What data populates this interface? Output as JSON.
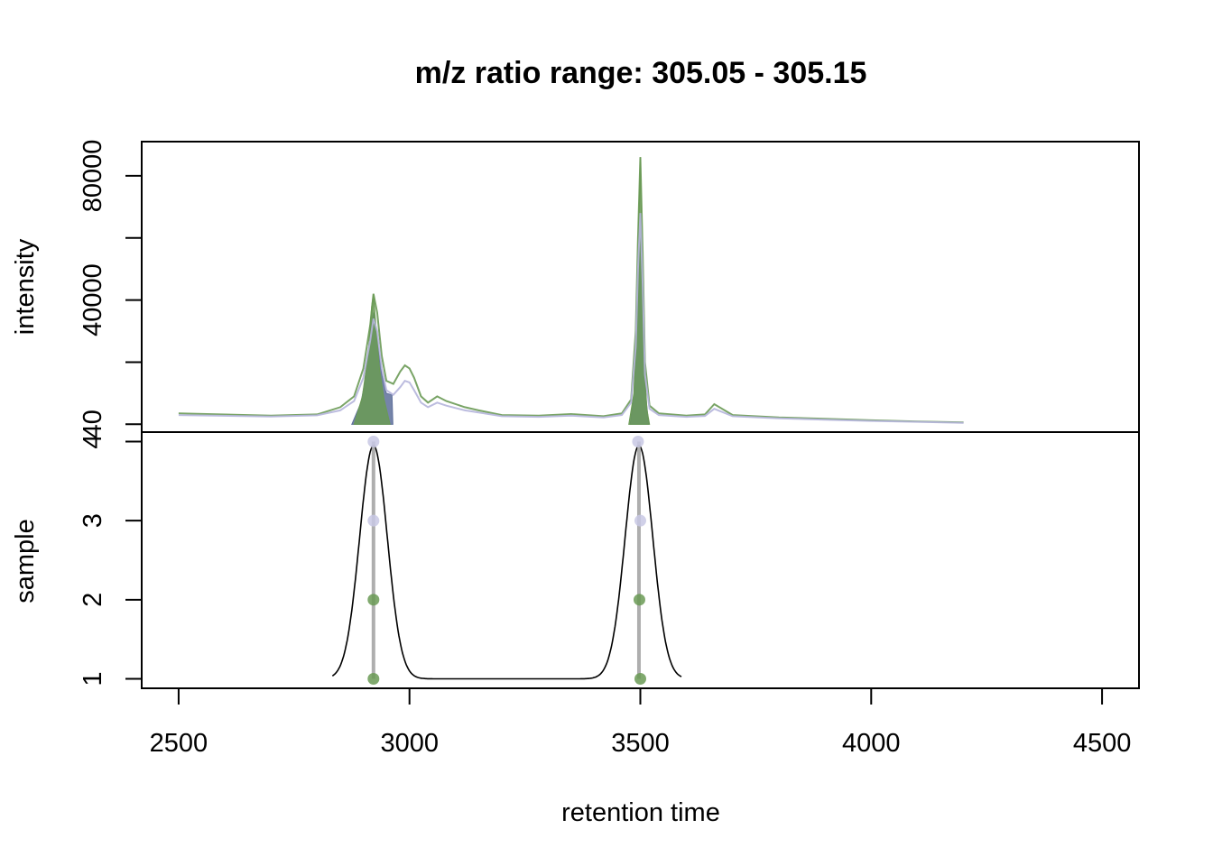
{
  "chart_data": {
    "title": "m/z ratio range: 305.05 - 305.15",
    "xlabel": "retention time",
    "xlim": [
      2420,
      4580
    ],
    "x_ticks": [
      "2500",
      "3000",
      "3500",
      "4000",
      "4500"
    ],
    "top_panel": {
      "type": "line",
      "ylabel": "intensity",
      "ylim": [
        -2500,
        91000
      ],
      "y_ticks": [
        "40",
        "40000",
        "80000"
      ],
      "y_tick_values": [
        40,
        40000,
        80000
      ],
      "y_minor_ticks": [
        20000,
        60000
      ],
      "series": [
        {
          "color": "#6a9a55",
          "x": [
            2500,
            2700,
            2800,
            2850,
            2880,
            2900,
            2915,
            2922,
            2930,
            2940,
            2950,
            2965,
            2980,
            2990,
            3000,
            3010,
            3025,
            3040,
            3060,
            3080,
            3120,
            3150,
            3200,
            3280,
            3350,
            3420,
            3460,
            3480,
            3490,
            3495,
            3500,
            3505,
            3510,
            3520,
            3540,
            3600,
            3640,
            3660,
            3700,
            3800,
            3900,
            4000,
            4100,
            4200
          ],
          "y": [
            3500,
            2800,
            3200,
            5500,
            9000,
            18000,
            32000,
            42000,
            36000,
            22000,
            14000,
            13000,
            17000,
            19000,
            18000,
            15000,
            9000,
            7000,
            9000,
            7500,
            5500,
            4500,
            3000,
            2800,
            3300,
            2600,
            3500,
            8000,
            30000,
            60000,
            86000,
            55000,
            20000,
            6000,
            3500,
            2800,
            3200,
            6500,
            3000,
            2200,
            1800,
            1300,
            900,
            600
          ]
        },
        {
          "color": "#b5b5dc",
          "x": [
            2500,
            2700,
            2800,
            2850,
            2880,
            2900,
            2915,
            2922,
            2930,
            2940,
            2950,
            2965,
            2980,
            2990,
            3000,
            3010,
            3025,
            3040,
            3060,
            3080,
            3120,
            3150,
            3200,
            3280,
            3350,
            3420,
            3460,
            3480,
            3490,
            3495,
            3500,
            3505,
            3510,
            3520,
            3540,
            3600,
            3640,
            3660,
            3700,
            3800,
            3900,
            4000,
            4100,
            4200
          ],
          "y": [
            3000,
            2500,
            2900,
            4500,
            7500,
            15000,
            27000,
            34000,
            30000,
            18000,
            11000,
            9500,
            12000,
            14000,
            13500,
            11000,
            7000,
            5500,
            7000,
            6000,
            4500,
            3800,
            2600,
            2400,
            2800,
            2200,
            3000,
            7000,
            25000,
            50000,
            68000,
            45000,
            16000,
            5000,
            3000,
            2400,
            2700,
            5000,
            2600,
            1900,
            1500,
            1100,
            800,
            500
          ]
        }
      ],
      "filled_peaks": [
        {
          "color": "#5d6e9a",
          "x": [
            2875,
            2895,
            2905,
            2915,
            2922,
            2930,
            2940,
            2950,
            2962,
            2964
          ],
          "y": [
            0,
            7000,
            15000,
            30000,
            36000,
            28000,
            16000,
            10000,
            9500,
            0
          ]
        },
        {
          "color": "#6a9a55",
          "x": [
            2880,
            2898,
            2910,
            2918,
            2922,
            2926,
            2935,
            2945,
            2958
          ],
          "y": [
            0,
            9000,
            22000,
            38000,
            42000,
            34000,
            18000,
            8000,
            0
          ]
        },
        {
          "color": "#5d6e9a",
          "x": [
            3478,
            3488,
            3494,
            3498,
            3501,
            3504,
            3510,
            3518
          ],
          "y": [
            0,
            12000,
            38000,
            60000,
            68000,
            45000,
            12000,
            0
          ]
        },
        {
          "color": "#6a9a55",
          "x": [
            3475,
            3486,
            3492,
            3496,
            3500,
            3503,
            3507,
            3514,
            3520
          ],
          "y": [
            0,
            10000,
            35000,
            62000,
            86000,
            60000,
            25000,
            5000,
            0
          ]
        }
      ]
    },
    "bottom_panel": {
      "type": "scatter",
      "ylabel": "sample",
      "ylim": [
        0.88,
        4.12
      ],
      "y_ticks": [
        "1",
        "2",
        "3",
        "4"
      ],
      "y_tick_values": [
        1,
        2,
        3,
        4
      ],
      "points": [
        {
          "x": 2922,
          "y": 4,
          "color": "#c8c8e4"
        },
        {
          "x": 2922,
          "y": 3,
          "color": "#c8c8e4"
        },
        {
          "x": 2922,
          "y": 2,
          "color": "#6a9a55"
        },
        {
          "x": 2922,
          "y": 1,
          "color": "#6a9a55"
        },
        {
          "x": 3495,
          "y": 4,
          "color": "#c8c8e4"
        },
        {
          "x": 3500,
          "y": 3,
          "color": "#c8c8e4"
        },
        {
          "x": 3498,
          "y": 2,
          "color": "#6a9a55"
        },
        {
          "x": 3500,
          "y": 1,
          "color": "#6a9a55"
        }
      ],
      "vertical_lines": [
        {
          "x": 2922,
          "y_from": 1,
          "y_to": 4
        },
        {
          "x": 3497,
          "y_from": 1,
          "y_to": 4
        }
      ],
      "density_curve": {
        "color": "#000000",
        "baseline": 1,
        "peak": 3.95,
        "start": 2833,
        "end": 3590,
        "peaks": [
          {
            "center": 2922,
            "sd": 30
          },
          {
            "center": 3497,
            "sd": 30
          }
        ]
      }
    }
  }
}
